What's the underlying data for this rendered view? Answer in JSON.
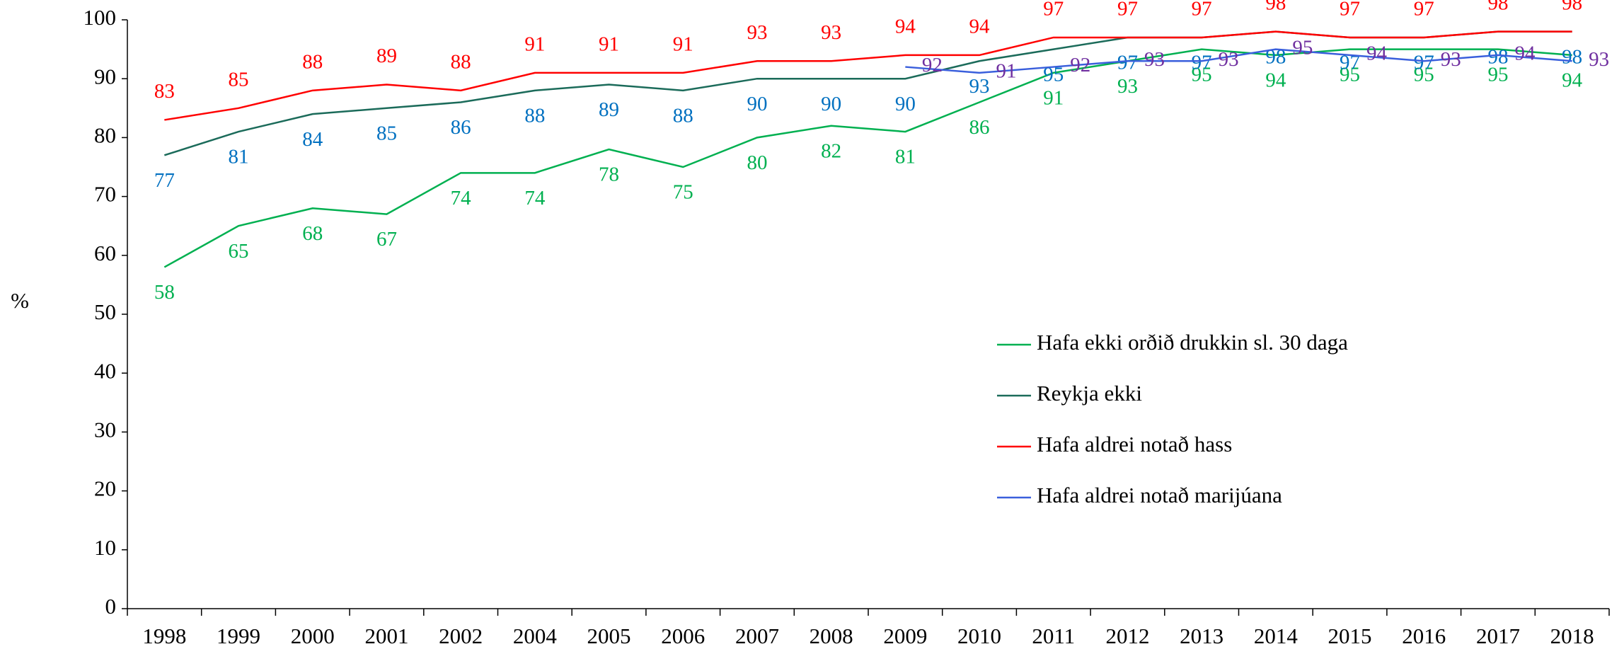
{
  "chart_data": {
    "type": "line",
    "y_axis_label": "%",
    "categories": [
      "1998",
      "1999",
      "2000",
      "2001",
      "2002",
      "2004",
      "2005",
      "2006",
      "2007",
      "2008",
      "2009",
      "2010",
      "2011",
      "2012",
      "2013",
      "2014",
      "2015",
      "2016",
      "2017",
      "2018"
    ],
    "series": [
      {
        "name": "Hafa ekki orðið drukkin sl. 30 daga",
        "color": "#00b050",
        "label_color": "#00b050",
        "values": [
          58,
          65,
          68,
          67,
          74,
          74,
          78,
          75,
          80,
          82,
          81,
          86,
          91,
          93,
          95,
          94,
          95,
          95,
          95,
          94
        ]
      },
      {
        "name": "Reykja ekki",
        "color": "#1b6b5a",
        "label_color": "#0070c0",
        "values": [
          77,
          81,
          84,
          85,
          86,
          88,
          89,
          88,
          90,
          90,
          90,
          93,
          95,
          97,
          97,
          98,
          97,
          97,
          98,
          98
        ]
      },
      {
        "name": "Hafa aldrei notað hass",
        "color": "#ff0000",
        "label_color": "#ff0000",
        "values": [
          83,
          85,
          88,
          89,
          88,
          91,
          91,
          91,
          93,
          93,
          94,
          94,
          97,
          97,
          97,
          98,
          97,
          97,
          98,
          98
        ]
      },
      {
        "name": "Hafa aldrei notað marijúana",
        "color": "#3a5fdc",
        "label_color": "#7030a0",
        "values": [
          null,
          null,
          null,
          null,
          null,
          null,
          null,
          null,
          null,
          null,
          92,
          91,
          92,
          93,
          93,
          95,
          94,
          93,
          94,
          93
        ]
      }
    ],
    "ylim": [
      0,
      100
    ],
    "yticks": [
      0,
      10,
      20,
      30,
      40,
      50,
      60,
      70,
      80,
      90,
      100
    ],
    "grid": false,
    "legend": "right"
  }
}
